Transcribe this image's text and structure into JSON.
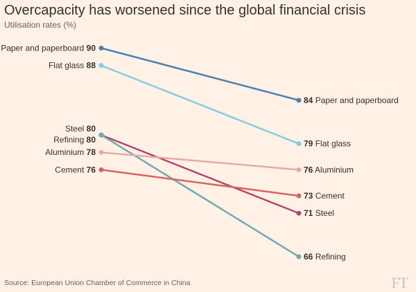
{
  "header": {
    "title": "Overcapacity has worsened since the global financial crisis",
    "subtitle": "Utilisation rates (%)"
  },
  "footer": {
    "source": "Source: European Union Chamber of Commerce in China",
    "logo": "FT"
  },
  "colors": {
    "background": "#fff1e5",
    "text": "#33302e"
  },
  "chart_data": {
    "type": "line",
    "subtype": "slope",
    "title": "Overcapacity has worsened since the global financial crisis",
    "subtitle": "Utilisation rates (%)",
    "series": [
      {
        "name": "Paper and paperboard",
        "start": 90,
        "end": 84,
        "color": "#4e7fb2"
      },
      {
        "name": "Flat glass",
        "start": 88,
        "end": 79,
        "color": "#88cbe4"
      },
      {
        "name": "Steel",
        "start": 80,
        "end": 71,
        "color": "#b1466c"
      },
      {
        "name": "Refining",
        "start": 80,
        "end": 66,
        "color": "#70a9b3"
      },
      {
        "name": "Aluminium",
        "start": 78,
        "end": 76,
        "color": "#e5aaa6"
      },
      {
        "name": "Cement",
        "start": 76,
        "end": 73,
        "color": "#d9625e"
      }
    ]
  }
}
